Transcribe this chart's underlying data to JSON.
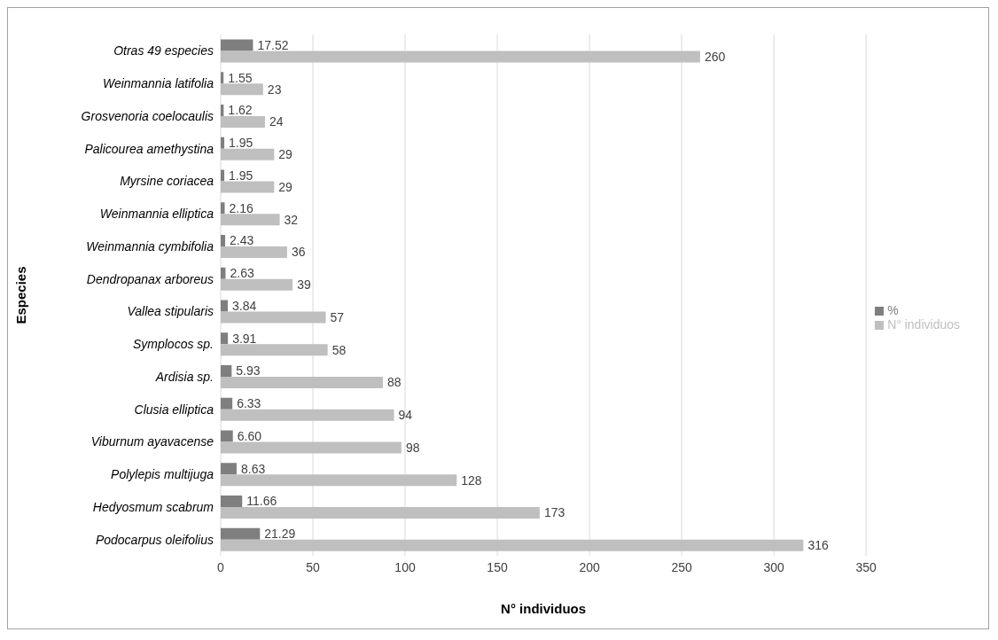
{
  "chart_data": {
    "type": "bar",
    "orientation": "horizontal",
    "xlabel": "N° individuos",
    "ylabel": "Especies",
    "categories": [
      "Otras 49 especies",
      "Weinmannia latifolia",
      "Grosvenoria coelocaulis",
      "Palicourea amethystina",
      "Myrsine coriacea",
      "Weinmannia elliptica",
      "Weinmannia cymbifolia",
      "Dendropanax arboreus",
      "Vallea stipularis",
      "Symplocos sp.",
      "Ardisia sp.",
      "Clusia elliptica",
      "Viburnum ayavacense",
      "Polylepis multijuga",
      "Hedyosmum scabrum",
      "Podocarpus oleifolius"
    ],
    "series": [
      {
        "name": "%",
        "color": "#7f7f7f",
        "values": [
          17.52,
          1.55,
          1.62,
          1.95,
          1.95,
          2.16,
          2.43,
          2.63,
          3.84,
          3.91,
          5.93,
          6.33,
          6.6,
          8.63,
          11.66,
          21.29
        ],
        "value_labels": [
          "17.52",
          "1.55",
          "1.62",
          "1.95",
          "1.95",
          "2.16",
          "2.43",
          "2.63",
          "3.84",
          "3.91",
          "5.93",
          "6.33",
          "6.60",
          "8.63",
          "11.66",
          "21.29"
        ]
      },
      {
        "name": "N° individuos",
        "color": "#bfbfbf",
        "values": [
          260,
          23,
          24,
          29,
          29,
          32,
          36,
          39,
          57,
          58,
          88,
          94,
          98,
          128,
          173,
          316
        ],
        "value_labels": [
          "260",
          "23",
          "24",
          "29",
          "29",
          "32",
          "36",
          "39",
          "57",
          "58",
          "88",
          "94",
          "98",
          "128",
          "173",
          "316"
        ]
      }
    ],
    "xlim": [
      0,
      350
    ],
    "xticks": [
      0,
      50,
      100,
      150,
      200,
      250,
      300,
      350
    ],
    "grid": "x",
    "legend": "right"
  }
}
